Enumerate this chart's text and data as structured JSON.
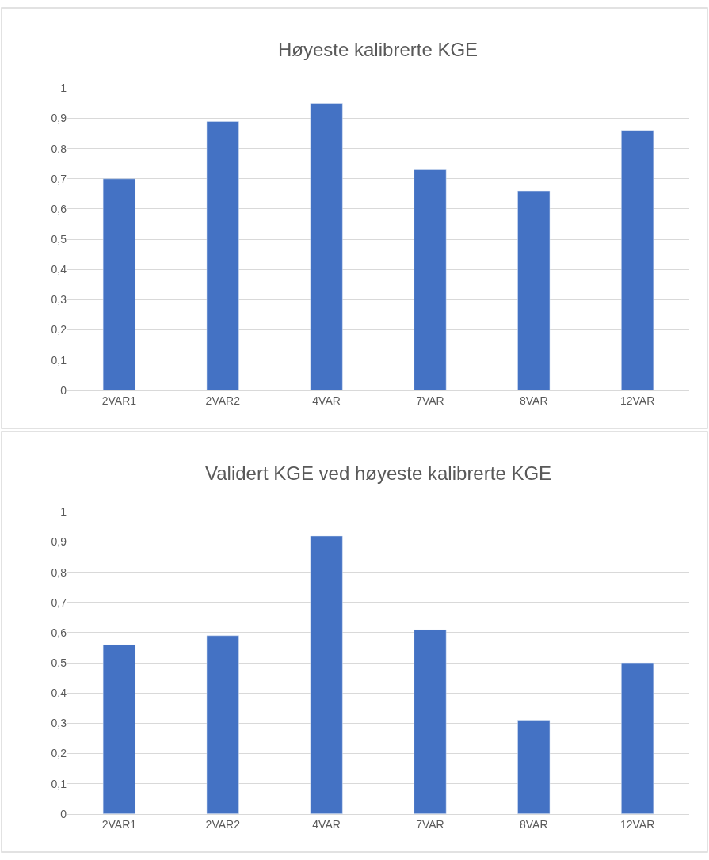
{
  "chart_data": [
    {
      "type": "bar",
      "title": "Høyeste kalibrerte KGE",
      "categories": [
        "2VAR1",
        "2VAR2",
        "4VAR",
        "7VAR",
        "8VAR",
        "12VAR"
      ],
      "values": [
        0.7,
        0.89,
        0.95,
        0.73,
        0.66,
        0.86
      ],
      "color": "#4472c4",
      "ylim": [
        0,
        1
      ],
      "yticks": [
        0,
        {
          "value": 0.1,
          "label": "0,1"
        },
        {
          "value": 0.2,
          "label": "0,2"
        },
        {
          "value": 0.3,
          "label": "0,3"
        },
        {
          "value": 0.4,
          "label": "0,4"
        },
        {
          "value": 0.5,
          "label": "0,5"
        },
        {
          "value": 0.6,
          "label": "0,6"
        },
        {
          "value": 0.7,
          "label": "0,7"
        },
        {
          "value": 0.8,
          "label": "0,8"
        },
        {
          "value": 0.9,
          "label": "0,9"
        },
        1
      ],
      "grid": "y"
    },
    {
      "type": "bar",
      "title": "Validert KGE ved høyeste kalibrerte KGE",
      "categories": [
        "2VAR1",
        "2VAR2",
        "4VAR",
        "7VAR",
        "8VAR",
        "12VAR"
      ],
      "values": [
        0.56,
        0.59,
        0.92,
        0.61,
        0.31,
        0.5
      ],
      "color": "#4472c4",
      "ylim": [
        0,
        1
      ],
      "yticks": [
        0,
        {
          "value": 0.1,
          "label": "0,1"
        },
        {
          "value": 0.2,
          "label": "0,2"
        },
        {
          "value": 0.3,
          "label": "0,3"
        },
        {
          "value": 0.4,
          "label": "0,4"
        },
        {
          "value": 0.5,
          "label": "0,5"
        },
        {
          "value": 0.6,
          "label": "0,6"
        },
        {
          "value": 0.7,
          "label": "0,7"
        },
        {
          "value": 0.8,
          "label": "0,8"
        },
        {
          "value": 0.9,
          "label": "0,9"
        },
        1
      ],
      "grid": "y"
    }
  ]
}
